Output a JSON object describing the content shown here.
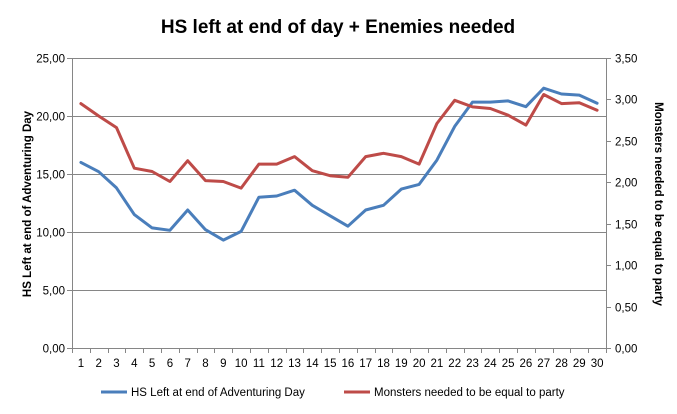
{
  "chart_data": {
    "type": "line",
    "title": "HS left at end of day + Enemies needed",
    "xlabel": "",
    "categories": [
      "1",
      "2",
      "3",
      "4",
      "5",
      "6",
      "7",
      "8",
      "9",
      "10",
      "11",
      "12",
      "13",
      "14",
      "15",
      "16",
      "17",
      "18",
      "19",
      "20",
      "21",
      "22",
      "23",
      "24",
      "25",
      "26",
      "27",
      "28",
      "29",
      "30"
    ],
    "y_left": {
      "label": "HS Left at end of Adventuring Day",
      "range": [
        0,
        25
      ],
      "ticks": [
        "0,00",
        "5,00",
        "10,00",
        "15,00",
        "20,00",
        "25,00"
      ],
      "tick_values": [
        0,
        5,
        10,
        15,
        20,
        25
      ]
    },
    "y_right": {
      "label": "Monsters needed to be equal to party",
      "range": [
        0,
        3.5
      ],
      "ticks": [
        "0,00",
        "0,50",
        "1,00",
        "1,50",
        "2,00",
        "2,50",
        "3,00",
        "3,50"
      ],
      "tick_values": [
        0,
        0.5,
        1.0,
        1.5,
        2.0,
        2.5,
        3.0,
        3.5
      ]
    },
    "grid": true,
    "legend_position": "bottom",
    "series": [
      {
        "name": "HS Left at end of Adventuring Day",
        "axis": "left",
        "color": "#4a7ebb",
        "values": [
          16.0,
          15.2,
          13.8,
          11.5,
          10.35,
          10.15,
          11.9,
          10.2,
          9.3,
          10.05,
          13.0,
          13.1,
          13.6,
          12.3,
          11.4,
          10.5,
          11.9,
          12.3,
          13.7,
          14.1,
          16.2,
          19.1,
          21.2,
          21.2,
          21.3,
          20.8,
          22.4,
          21.9,
          21.8,
          21.1
        ]
      },
      {
        "name": "Monsters needed to be equal to party",
        "axis": "right",
        "color": "#be4b48",
        "values": [
          2.95,
          2.8,
          2.66,
          2.17,
          2.13,
          2.01,
          2.26,
          2.02,
          2.01,
          1.93,
          2.22,
          2.22,
          2.31,
          2.14,
          2.08,
          2.06,
          2.31,
          2.35,
          2.31,
          2.22,
          2.71,
          2.99,
          2.91,
          2.89,
          2.81,
          2.69,
          3.06,
          2.95,
          2.96,
          2.87
        ]
      }
    ]
  }
}
